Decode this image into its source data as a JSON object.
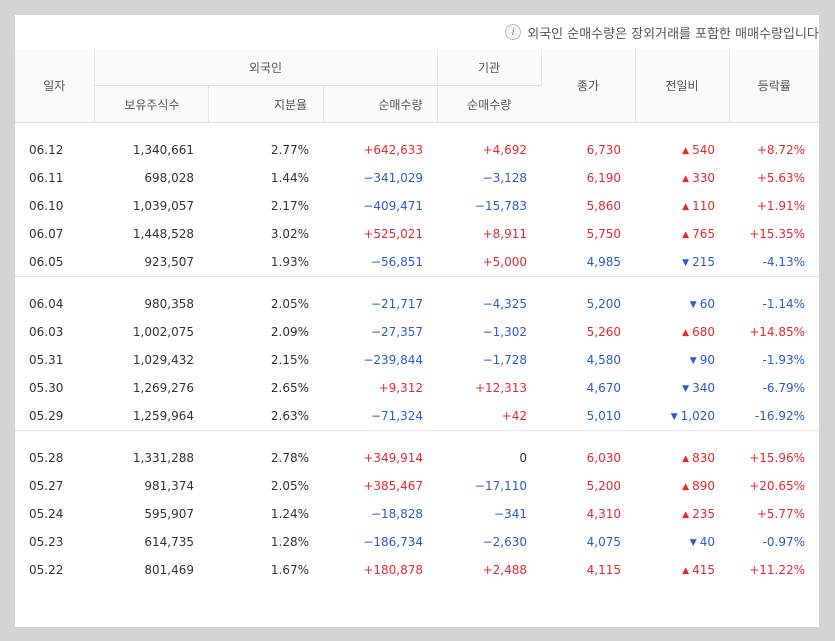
{
  "notice": "외국인 순매수량은 장외거래를 포함한 매매수량입니다.",
  "headers": {
    "date": "일자",
    "foreign": "외국인",
    "institution": "기관",
    "holding": "보유주식수",
    "ratio": "지분율",
    "foreign_net": "순매수량",
    "inst_net": "순매수량",
    "close": "종가",
    "change": "전일비",
    "rate": "등락률"
  },
  "colors": {
    "up": "#e8282f",
    "down": "#2a5bd3"
  },
  "groups": [
    [
      {
        "date": "06.12",
        "holding": "1,340,661",
        "ratio": "2.77%",
        "foreign_net": "+642,633",
        "inst_net": "+4,692",
        "close": "6,730",
        "change": "540",
        "rate": "+8.72%",
        "dir": "up",
        "fdir": "up",
        "idir": "up"
      },
      {
        "date": "06.11",
        "holding": "698,028",
        "ratio": "1.44%",
        "foreign_net": "−341,029",
        "inst_net": "−3,128",
        "close": "6,190",
        "change": "330",
        "rate": "+5.63%",
        "dir": "up",
        "fdir": "down",
        "idir": "down"
      },
      {
        "date": "06.10",
        "holding": "1,039,057",
        "ratio": "2.17%",
        "foreign_net": "−409,471",
        "inst_net": "−15,783",
        "close": "5,860",
        "change": "110",
        "rate": "+1.91%",
        "dir": "up",
        "fdir": "down",
        "idir": "down"
      },
      {
        "date": "06.07",
        "holding": "1,448,528",
        "ratio": "3.02%",
        "foreign_net": "+525,021",
        "inst_net": "+8,911",
        "close": "5,750",
        "change": "765",
        "rate": "+15.35%",
        "dir": "up",
        "fdir": "up",
        "idir": "up"
      },
      {
        "date": "06.05",
        "holding": "923,507",
        "ratio": "1.93%",
        "foreign_net": "−56,851",
        "inst_net": "+5,000",
        "close": "4,985",
        "change": "215",
        "rate": "-4.13%",
        "dir": "down",
        "fdir": "down",
        "idir": "up"
      }
    ],
    [
      {
        "date": "06.04",
        "holding": "980,358",
        "ratio": "2.05%",
        "foreign_net": "−21,717",
        "inst_net": "−4,325",
        "close": "5,200",
        "change": "60",
        "rate": "-1.14%",
        "dir": "down",
        "fdir": "down",
        "idir": "down"
      },
      {
        "date": "06.03",
        "holding": "1,002,075",
        "ratio": "2.09%",
        "foreign_net": "−27,357",
        "inst_net": "−1,302",
        "close": "5,260",
        "change": "680",
        "rate": "+14.85%",
        "dir": "up",
        "fdir": "down",
        "idir": "down"
      },
      {
        "date": "05.31",
        "holding": "1,029,432",
        "ratio": "2.15%",
        "foreign_net": "−239,844",
        "inst_net": "−1,728",
        "close": "4,580",
        "change": "90",
        "rate": "-1.93%",
        "dir": "down",
        "fdir": "down",
        "idir": "down"
      },
      {
        "date": "05.30",
        "holding": "1,269,276",
        "ratio": "2.65%",
        "foreign_net": "+9,312",
        "inst_net": "+12,313",
        "close": "4,670",
        "change": "340",
        "rate": "-6.79%",
        "dir": "down",
        "fdir": "up",
        "idir": "up"
      },
      {
        "date": "05.29",
        "holding": "1,259,964",
        "ratio": "2.63%",
        "foreign_net": "−71,324",
        "inst_net": "+42",
        "close": "5,010",
        "change": "1,020",
        "rate": "-16.92%",
        "dir": "down",
        "fdir": "down",
        "idir": "up"
      }
    ],
    [
      {
        "date": "05.28",
        "holding": "1,331,288",
        "ratio": "2.78%",
        "foreign_net": "+349,914",
        "inst_net": "0",
        "close": "6,030",
        "change": "830",
        "rate": "+15.96%",
        "dir": "up",
        "fdir": "up",
        "idir": "flat"
      },
      {
        "date": "05.27",
        "holding": "981,374",
        "ratio": "2.05%",
        "foreign_net": "+385,467",
        "inst_net": "−17,110",
        "close": "5,200",
        "change": "890",
        "rate": "+20.65%",
        "dir": "up",
        "fdir": "up",
        "idir": "down"
      },
      {
        "date": "05.24",
        "holding": "595,907",
        "ratio": "1.24%",
        "foreign_net": "−18,828",
        "inst_net": "−341",
        "close": "4,310",
        "change": "235",
        "rate": "+5.77%",
        "dir": "up",
        "fdir": "down",
        "idir": "down"
      },
      {
        "date": "05.23",
        "holding": "614,735",
        "ratio": "1.28%",
        "foreign_net": "−186,734",
        "inst_net": "−2,630",
        "close": "4,075",
        "change": "40",
        "rate": "-0.97%",
        "dir": "down",
        "fdir": "down",
        "idir": "down"
      },
      {
        "date": "05.22",
        "holding": "801,469",
        "ratio": "1.67%",
        "foreign_net": "+180,878",
        "inst_net": "+2,488",
        "close": "4,115",
        "change": "415",
        "rate": "+11.22%",
        "dir": "up",
        "fdir": "up",
        "idir": "up"
      }
    ]
  ]
}
